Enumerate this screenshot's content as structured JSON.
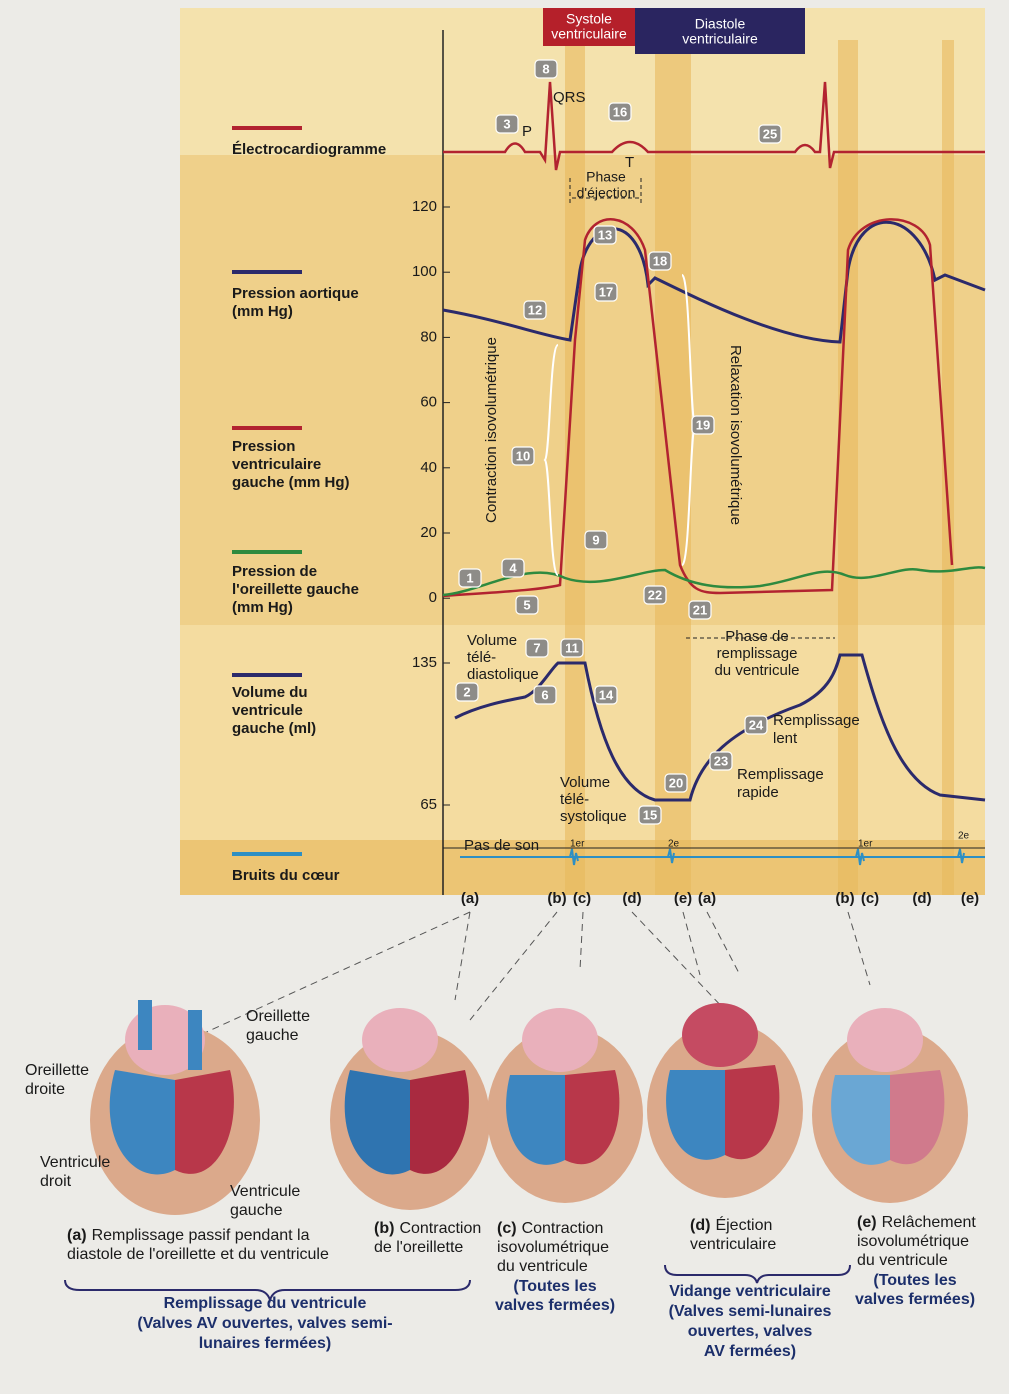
{
  "header": {
    "systole": [
      "Systole",
      "ventriculaire"
    ],
    "diastole": [
      "Diastole",
      "ventriculaire"
    ]
  },
  "rows": [
    {
      "label": [
        "Électrocardiogramme"
      ]
    },
    {
      "label": [
        "Pression aortique",
        "(mm Hg)"
      ]
    },
    {
      "label": [
        "Pression",
        "ventriculaire",
        "gauche (mm Hg)"
      ]
    },
    {
      "label": [
        "Pression de",
        "l'oreillette gauche",
        "(mm Hg)"
      ]
    },
    {
      "label": [
        "Volume du",
        "ventricule",
        "gauche (ml)"
      ]
    },
    {
      "label": [
        "Bruits du cœur"
      ]
    }
  ],
  "pressure_axis": [
    120,
    100,
    80,
    60,
    40,
    20,
    0
  ],
  "volume_axis": [
    135,
    65
  ],
  "markers": [
    "1",
    "2",
    "3",
    "4",
    "5",
    "6",
    "7",
    "8",
    "9",
    "10",
    "11",
    "12",
    "13",
    "14",
    "15",
    "16",
    "17",
    "18",
    "19",
    "20",
    "21",
    "22",
    "23",
    "24",
    "25"
  ],
  "annotations": {
    "qrs": "QRS",
    "p": "P",
    "t": "T",
    "ejection": [
      "Phase",
      "d'éjection"
    ],
    "contraction": "Contraction isovolumétrique",
    "relaxation": "Relaxation isovolumétrique",
    "edv": [
      "Volume",
      "télé-",
      "diastolique"
    ],
    "esv": [
      "Volume",
      "télé-",
      "systolique"
    ],
    "filling_phase": [
      "Phase de",
      "remplissage",
      "du ventricule"
    ],
    "slow": [
      "Remplissage",
      "lent"
    ],
    "rapid": [
      "Remplissage",
      "rapide"
    ],
    "no_sound": "Pas de son",
    "s1": [
      "1er",
      "1er"
    ],
    "s2": [
      "2e",
      "2e"
    ]
  },
  "phase_letters": [
    "(a)",
    "(b)",
    "(c)",
    "(d)",
    "(e)",
    "(a)",
    "(b)",
    "(c)",
    "(d)",
    "(e)"
  ],
  "heart_labels": {
    "la": [
      "Oreillette",
      "gauche"
    ],
    "ra": [
      "Oreillette",
      "droite"
    ],
    "rv": [
      "Ventricule",
      "droit"
    ],
    "lv": [
      "Ventricule",
      "gauche"
    ]
  },
  "panels": [
    {
      "letter": "(a)",
      "caption": [
        "Remplissage passif pendant la",
        "diastole de l'oreillette et du ventricule"
      ]
    },
    {
      "letter": "(b)",
      "caption": [
        "Contraction",
        "de l'oreillette"
      ]
    },
    {
      "letter": "(c)",
      "caption": [
        "Contraction",
        "isovolumétrique",
        "du ventricule"
      ],
      "note": [
        "(Toutes les",
        "valves fermées)"
      ]
    },
    {
      "letter": "(d)",
      "caption": [
        "Éjection",
        "ventriculaire"
      ]
    },
    {
      "letter": "(e)",
      "caption": [
        "Relâchement",
        "isovolumétrique",
        "du ventricule"
      ],
      "note": [
        "(Toutes les",
        "valves fermées)"
      ]
    }
  ],
  "groups": [
    {
      "lines": [
        "Remplissage du ventricule",
        "(Valves AV ouvertes, valves semi-",
        "lunaires fermées)"
      ]
    },
    {
      "lines": [
        "Vidange ventriculaire",
        "(Valves semi-lunaires",
        "ouvertes, valves",
        "AV fermées)"
      ]
    }
  ]
}
